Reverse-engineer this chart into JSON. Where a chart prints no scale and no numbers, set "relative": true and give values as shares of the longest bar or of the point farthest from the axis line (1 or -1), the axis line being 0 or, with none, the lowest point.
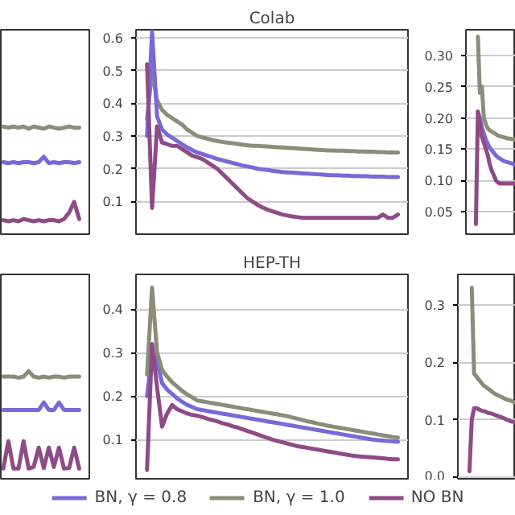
{
  "chart_data": [
    {
      "type": "line",
      "relative": true,
      "categories": [
        null,
        null,
        null,
        null,
        null,
        null,
        null,
        null,
        null,
        null,
        null,
        null,
        null,
        null,
        null,
        null
      ],
      "series": [
        {
          "color": "#8c8c78",
          "values": [
            1,
            0.99,
            1,
            0.99,
            1,
            0.98,
            1,
            0.99,
            0.98,
            1,
            0.99,
            0.98,
            0.99,
            1,
            0.99,
            0.99
          ]
        },
        {
          "color": "#7b68d8",
          "values": [
            0.67,
            0.66,
            0.67,
            0.66,
            0.67,
            0.67,
            0.66,
            0.67,
            0.72,
            0.66,
            0.67,
            0.66,
            0.67,
            0.67,
            0.66,
            0.67
          ]
        },
        {
          "color": "#8e4b86",
          "values": [
            0.13,
            0.12,
            0.13,
            0.12,
            0.14,
            0.13,
            0.12,
            0.13,
            0.12,
            0.13,
            0.13,
            0.12,
            0.14,
            0.2,
            0.3,
            0.14
          ]
        }
      ]
    },
    {
      "type": "line",
      "title": "Colab",
      "grid": "y",
      "ylim": [
        0.0,
        0.625
      ],
      "yticks": [
        {
          "value": 0.1,
          "label": "0.1"
        },
        {
          "value": 0.2,
          "label": "0.2"
        },
        {
          "value": 0.3,
          "label": "0.3"
        },
        {
          "value": 0.4,
          "label": "0.4"
        },
        {
          "value": 0.5,
          "label": "0.5"
        },
        {
          "value": 0.6,
          "label": "0.6"
        }
      ],
      "categories": [
        null,
        null,
        null,
        null,
        null,
        null,
        null,
        null,
        null,
        null,
        null,
        null,
        null,
        null,
        null,
        null,
        null,
        null,
        null,
        null,
        null,
        null,
        null,
        null,
        null,
        null,
        null,
        null,
        null,
        null,
        null,
        null,
        null,
        null,
        null,
        null,
        null,
        null,
        null,
        null,
        null,
        null,
        null,
        null,
        null,
        null,
        null,
        null,
        null,
        null,
        null
      ],
      "series": [
        {
          "color": "#8c8c78",
          "values": [
            0.35,
            0.5,
            0.41,
            0.38,
            0.365,
            0.355,
            0.345,
            0.335,
            0.32,
            0.31,
            0.3,
            0.296,
            0.292,
            0.288,
            0.285,
            0.282,
            0.28,
            0.278,
            0.276,
            0.274,
            0.272,
            0.27,
            0.27,
            0.269,
            0.268,
            0.267,
            0.266,
            0.265,
            0.264,
            0.263,
            0.262,
            0.261,
            0.26,
            0.259,
            0.258,
            0.257,
            0.256,
            0.256,
            0.255,
            0.255,
            0.254,
            0.254,
            0.253,
            0.253,
            0.252,
            0.252,
            0.251,
            0.251,
            0.25,
            0.25,
            0.25
          ]
        },
        {
          "color": "#7b68d8",
          "values": [
            0.3,
            0.62,
            0.36,
            0.32,
            0.305,
            0.295,
            0.285,
            0.275,
            0.265,
            0.257,
            0.25,
            0.245,
            0.24,
            0.235,
            0.23,
            0.226,
            0.222,
            0.218,
            0.214,
            0.21,
            0.207,
            0.204,
            0.2,
            0.198,
            0.196,
            0.194,
            0.192,
            0.19,
            0.189,
            0.188,
            0.187,
            0.186,
            0.185,
            0.184,
            0.183,
            0.182,
            0.181,
            0.18,
            0.18,
            0.179,
            0.179,
            0.178,
            0.178,
            0.177,
            0.177,
            0.176,
            0.176,
            0.176,
            0.175,
            0.175,
            0.175
          ]
        },
        {
          "color": "#8e4b86",
          "values": [
            0.52,
            0.08,
            0.33,
            0.28,
            0.275,
            0.27,
            0.27,
            0.26,
            0.25,
            0.24,
            0.235,
            0.23,
            0.22,
            0.21,
            0.2,
            0.185,
            0.17,
            0.155,
            0.14,
            0.125,
            0.11,
            0.1,
            0.09,
            0.082,
            0.075,
            0.07,
            0.065,
            0.06,
            0.057,
            0.054,
            0.052,
            0.05,
            0.05,
            0.05,
            0.05,
            0.05,
            0.05,
            0.05,
            0.05,
            0.05,
            0.05,
            0.05,
            0.05,
            0.05,
            0.05,
            0.05,
            0.05,
            0.06,
            0.05,
            0.05,
            0.06
          ]
        }
      ]
    },
    {
      "type": "line",
      "grid": "y",
      "ylim": [
        0.014,
        0.341
      ],
      "yticks": [
        {
          "value": 0.05,
          "label": "0.05"
        },
        {
          "value": 0.1,
          "label": "0.10"
        },
        {
          "value": 0.15,
          "label": "0.15"
        },
        {
          "value": 0.2,
          "label": "0.20"
        },
        {
          "value": 0.25,
          "label": "0.25"
        },
        {
          "value": 0.3,
          "label": "0.30"
        }
      ],
      "categories": [
        null,
        null,
        null,
        null,
        null,
        null,
        null,
        null,
        null,
        null,
        null,
        null,
        null,
        null,
        null,
        null,
        null,
        null,
        null,
        null,
        null
      ],
      "series": [
        {
          "color": "#8c8c78",
          "values": [
            null,
            0.33,
            0.24,
            0.25,
            0.2,
            0.19,
            0.183,
            0.18,
            0.178,
            0.176,
            0.174,
            0.172,
            0.171,
            0.17,
            0.169,
            0.168,
            0.167,
            0.167,
            0.166,
            0.166,
            0.165
          ]
        },
        {
          "color": "#7b68d8",
          "values": [
            null,
            0.21,
            0.2,
            0.185,
            0.175,
            0.165,
            0.158,
            0.152,
            0.148,
            0.144,
            0.14,
            0.137,
            0.135,
            0.133,
            0.131,
            0.13,
            0.129,
            0.128,
            0.127,
            0.126,
            0.125
          ]
        },
        {
          "color": "#8e4b86",
          "values": [
            0.03,
            0.21,
            0.19,
            0.17,
            0.16,
            0.15,
            0.14,
            0.125,
            0.115,
            0.108,
            0.1,
            0.097,
            0.095,
            0.095,
            0.095,
            0.095,
            0.095,
            0.095,
            0.095,
            0.095,
            0.095
          ]
        }
      ]
    },
    {
      "type": "line",
      "relative": true,
      "categories": [
        null,
        null,
        null,
        null,
        null,
        null,
        null,
        null,
        null,
        null,
        null,
        null,
        null,
        null,
        null,
        null
      ],
      "series": [
        {
          "color": "#8c8c78",
          "values": [
            0.95,
            0.95,
            0.95,
            0.94,
            0.95,
            1,
            0.95,
            0.94,
            0.95,
            0.94,
            0.95,
            0.95,
            0.94,
            0.95,
            0.95,
            0.95
          ]
        },
        {
          "color": "#7b68d8",
          "values": [
            0.64,
            0.64,
            0.64,
            0.64,
            0.64,
            0.64,
            0.64,
            0.64,
            0.71,
            0.64,
            0.64,
            0.71,
            0.64,
            0.64,
            0.64,
            0.64
          ]
        },
        {
          "color": "#8e4b86",
          "values": [
            0.095,
            0.35,
            0.095,
            0.095,
            0.35,
            0.095,
            0.11,
            0.29,
            0.1,
            0.29,
            0.11,
            0.29,
            0.095,
            0.1,
            0.29,
            0.095
          ]
        }
      ]
    },
    {
      "type": "line",
      "title": "HEP-TH",
      "grid": "y",
      "legend": "bottom",
      "ylim": [
        0.01,
        0.48
      ],
      "yticks": [
        {
          "value": 0.1,
          "label": "0.1"
        },
        {
          "value": 0.2,
          "label": "0.2"
        },
        {
          "value": 0.3,
          "label": "0.3"
        },
        {
          "value": 0.4,
          "label": "0.4"
        }
      ],
      "categories": [
        null,
        null,
        null,
        null,
        null,
        null,
        null,
        null,
        null,
        null,
        null,
        null,
        null,
        null,
        null,
        null,
        null,
        null,
        null,
        null,
        null,
        null,
        null,
        null,
        null,
        null,
        null,
        null,
        null,
        null,
        null,
        null,
        null,
        null,
        null,
        null,
        null,
        null,
        null,
        null,
        null,
        null,
        null,
        null,
        null,
        null,
        null,
        null,
        null,
        null,
        null
      ],
      "series": [
        {
          "name": "BN, γ = 0.8",
          "color": "#7b68d8",
          "values": [
            0.2,
            0.3,
            0.28,
            0.23,
            0.215,
            0.205,
            0.195,
            0.187,
            0.18,
            0.175,
            0.17,
            0.168,
            0.166,
            0.164,
            0.162,
            0.16,
            0.158,
            0.156,
            0.154,
            0.152,
            0.15,
            0.148,
            0.146,
            0.144,
            0.142,
            0.14,
            0.138,
            0.136,
            0.134,
            0.132,
            0.13,
            0.128,
            0.126,
            0.124,
            0.122,
            0.12,
            0.118,
            0.116,
            0.114,
            0.112,
            0.11,
            0.108,
            0.106,
            0.104,
            0.102,
            0.1,
            0.099,
            0.098,
            0.097,
            0.096,
            0.095
          ]
        },
        {
          "name": "BN, γ = 1.0",
          "color": "#8c8c78",
          "values": [
            0.25,
            0.45,
            0.3,
            0.26,
            0.245,
            0.232,
            0.222,
            0.212,
            0.204,
            0.197,
            0.19,
            0.188,
            0.186,
            0.184,
            0.182,
            0.18,
            0.178,
            0.176,
            0.174,
            0.172,
            0.17,
            0.168,
            0.166,
            0.164,
            0.162,
            0.16,
            0.158,
            0.156,
            0.154,
            0.151,
            0.148,
            0.145,
            0.142,
            0.14,
            0.137,
            0.135,
            0.132,
            0.13,
            0.128,
            0.126,
            0.124,
            0.122,
            0.12,
            0.118,
            0.116,
            0.114,
            0.112,
            0.11,
            0.108,
            0.106,
            0.105
          ]
        },
        {
          "name": "NO BN",
          "color": "#8e4b86",
          "values": [
            0.03,
            0.32,
            0.22,
            0.13,
            0.16,
            0.18,
            0.17,
            0.165,
            0.16,
            0.157,
            0.155,
            0.152,
            0.148,
            0.145,
            0.142,
            0.138,
            0.135,
            0.131,
            0.128,
            0.124,
            0.12,
            0.116,
            0.112,
            0.108,
            0.104,
            0.1,
            0.097,
            0.094,
            0.091,
            0.088,
            0.085,
            0.083,
            0.081,
            0.079,
            0.077,
            0.075,
            0.073,
            0.071,
            0.069,
            0.067,
            0.065,
            0.063,
            0.062,
            0.061,
            0.06,
            0.059,
            0.058,
            0.057,
            0.056,
            0.055,
            0.055
          ]
        }
      ]
    },
    {
      "type": "line",
      "grid": "y",
      "ylim": [
        -0.003,
        0.353
      ],
      "yticks": [
        {
          "value": 0.0,
          "label": "0.0"
        },
        {
          "value": 0.1,
          "label": "0.1"
        },
        {
          "value": 0.2,
          "label": "0.2"
        },
        {
          "value": 0.3,
          "label": "0.3"
        }
      ],
      "categories": [
        null,
        null,
        null,
        null,
        null,
        null,
        null,
        null,
        null,
        null,
        null,
        null,
        null,
        null,
        null,
        null,
        null,
        null,
        null,
        null,
        null
      ],
      "series": [
        {
          "color": "#8c8c78",
          "values": [
            null,
            0.33,
            0.18,
            0.175,
            0.17,
            0.165,
            0.16,
            0.157,
            0.154,
            0.151,
            0.148,
            0.145,
            0.143,
            0.141,
            0.139,
            0.137,
            0.135,
            0.134,
            0.133,
            0.131,
            0.13
          ]
        },
        {
          "color": "#8e4b86",
          "values": [
            0.01,
            0.1,
            0.12,
            0.12,
            0.118,
            0.116,
            0.115,
            0.114,
            0.112,
            0.111,
            0.11,
            0.108,
            0.107,
            0.105,
            0.104,
            0.102,
            0.1,
            0.099,
            0.097,
            0.096,
            0.095
          ]
        }
      ]
    }
  ]
}
